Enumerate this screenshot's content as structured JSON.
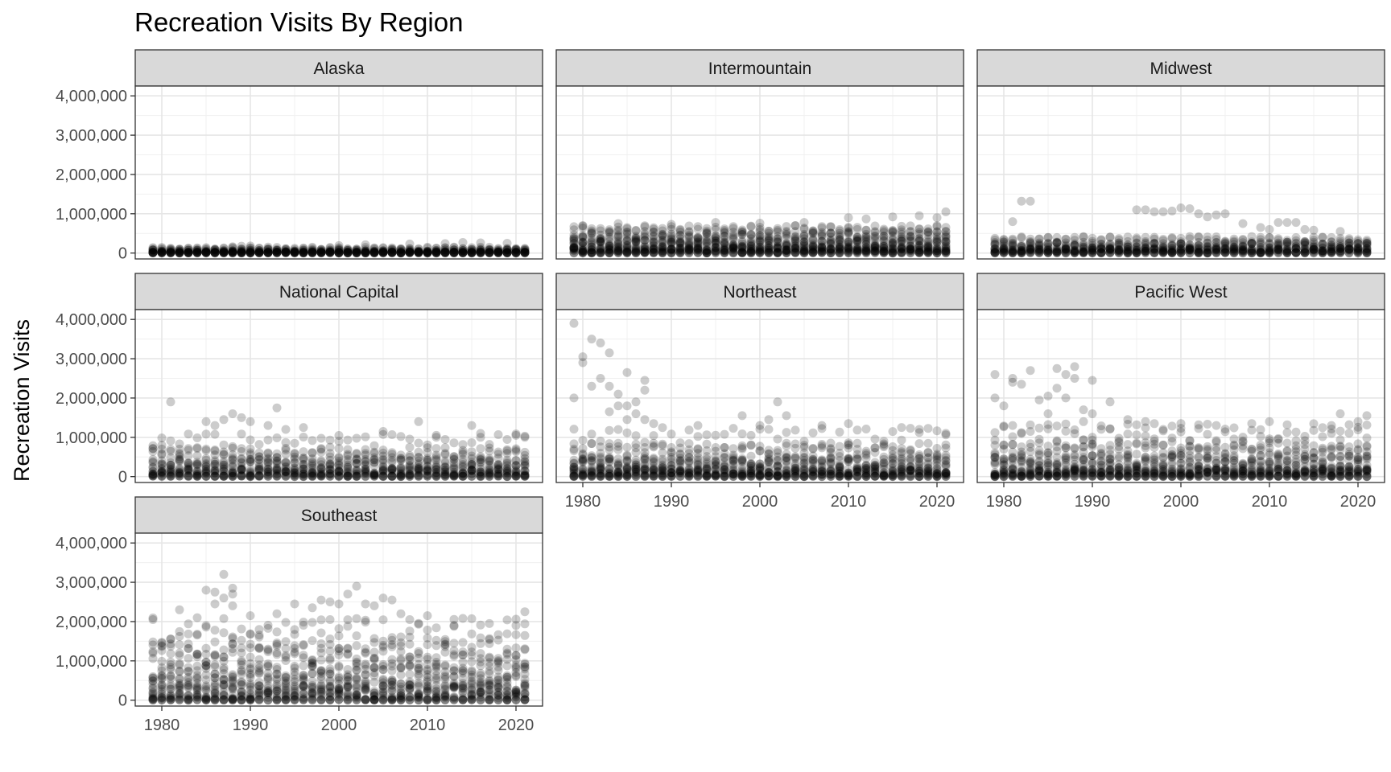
{
  "chart_data": {
    "type": "scatter",
    "title": "Recreation Visits By Region",
    "xlabel": "",
    "ylabel": "Recreation Visits",
    "xlim": [
      1977,
      2023
    ],
    "ylim": [
      -150000,
      4250000
    ],
    "x_ticks": [
      1980,
      1990,
      2000,
      2010,
      2020
    ],
    "x_tick_labels": [
      "1980",
      "1990",
      "2000",
      "2010",
      "2020"
    ],
    "y_ticks": [
      0,
      1000000,
      2000000,
      3000000,
      4000000
    ],
    "y_tick_labels": [
      "0",
      "1,000,000",
      "2,000,000",
      "3,000,000",
      "4,000,000"
    ],
    "grid": true,
    "legend": "none",
    "point_color": "#000000",
    "point_alpha": 0.2,
    "strip_color": "#d9d9d9",
    "years": [
      1979,
      2021
    ],
    "facets": [
      {
        "name": "Alaska",
        "bands": [
          [
            0,
            30000,
            7
          ],
          [
            30000,
            90000,
            4
          ],
          [
            90000,
            150000,
            2
          ]
        ],
        "outliers": [
          [
            1988,
            160000
          ],
          [
            1989,
            175000
          ],
          [
            1990,
            180000
          ],
          [
            1992,
            150000
          ],
          [
            2000,
            190000
          ],
          [
            2003,
            210000
          ],
          [
            2008,
            230000
          ],
          [
            2012,
            240000
          ],
          [
            2014,
            270000
          ],
          [
            2016,
            260000
          ],
          [
            2019,
            250000
          ]
        ]
      },
      {
        "name": "Intermountain",
        "bands": [
          [
            0,
            150000,
            9
          ],
          [
            150000,
            350000,
            6
          ],
          [
            350000,
            550000,
            4
          ],
          [
            550000,
            700000,
            2
          ]
        ],
        "outliers": [
          [
            1980,
            700000
          ],
          [
            1984,
            750000
          ],
          [
            1990,
            730000
          ],
          [
            1995,
            780000
          ],
          [
            2000,
            760000
          ],
          [
            2005,
            780000
          ],
          [
            2010,
            900000
          ],
          [
            2012,
            870000
          ],
          [
            2015,
            920000
          ],
          [
            2018,
            950000
          ],
          [
            2020,
            900000
          ],
          [
            2021,
            1050000
          ]
        ]
      },
      {
        "name": "Midwest",
        "bands": [
          [
            0,
            120000,
            8
          ],
          [
            120000,
            280000,
            5
          ],
          [
            280000,
            420000,
            2
          ]
        ],
        "outliers": [
          [
            1980,
            330000
          ],
          [
            1981,
            800000
          ],
          [
            1982,
            1320000
          ],
          [
            1983,
            1320000
          ],
          [
            1995,
            1100000
          ],
          [
            1996,
            1100000
          ],
          [
            1997,
            1050000
          ],
          [
            1998,
            1050000
          ],
          [
            1999,
            1070000
          ],
          [
            2000,
            1150000
          ],
          [
            2001,
            1130000
          ],
          [
            2002,
            1000000
          ],
          [
            2003,
            920000
          ],
          [
            2004,
            970000
          ],
          [
            2005,
            1000000
          ],
          [
            2007,
            750000
          ],
          [
            2009,
            650000
          ],
          [
            2010,
            600000
          ],
          [
            2011,
            780000
          ],
          [
            2012,
            780000
          ],
          [
            2013,
            780000
          ],
          [
            2014,
            600000
          ],
          [
            2015,
            580000
          ],
          [
            2018,
            550000
          ]
        ]
      },
      {
        "name": "National Capital",
        "bands": [
          [
            0,
            200000,
            8
          ],
          [
            200000,
            450000,
            5
          ],
          [
            450000,
            750000,
            3
          ],
          [
            750000,
            1100000,
            1
          ]
        ],
        "outliers": [
          [
            1980,
            800000
          ],
          [
            1981,
            1900000
          ],
          [
            1982,
            700000
          ],
          [
            1985,
            1400000
          ],
          [
            1986,
            1300000
          ],
          [
            1987,
            1450000
          ],
          [
            1988,
            1600000
          ],
          [
            1989,
            1500000
          ],
          [
            1990,
            1400000
          ],
          [
            1992,
            1300000
          ],
          [
            1993,
            1750000
          ],
          [
            1994,
            1200000
          ],
          [
            1996,
            1250000
          ],
          [
            2000,
            900000
          ],
          [
            2005,
            1150000
          ],
          [
            2009,
            1400000
          ],
          [
            2011,
            1050000
          ],
          [
            2015,
            1300000
          ],
          [
            2016,
            1000000
          ],
          [
            2020,
            1050000
          ],
          [
            2021,
            1000000
          ]
        ]
      },
      {
        "name": "Northeast",
        "bands": [
          [
            0,
            200000,
            9
          ],
          [
            200000,
            500000,
            6
          ],
          [
            500000,
            850000,
            3
          ],
          [
            850000,
            1250000,
            1
          ]
        ],
        "outliers": [
          [
            1979,
            3900000
          ],
          [
            1979,
            2000000
          ],
          [
            1980,
            3050000
          ],
          [
            1980,
            2900000
          ],
          [
            1981,
            3500000
          ],
          [
            1981,
            2300000
          ],
          [
            1982,
            3400000
          ],
          [
            1982,
            2500000
          ],
          [
            1983,
            3150000
          ],
          [
            1983,
            2300000
          ],
          [
            1983,
            1650000
          ],
          [
            1984,
            2100000
          ],
          [
            1984,
            1800000
          ],
          [
            1985,
            2650000
          ],
          [
            1985,
            1800000
          ],
          [
            1985,
            1450000
          ],
          [
            1986,
            1900000
          ],
          [
            1986,
            1600000
          ],
          [
            1987,
            2450000
          ],
          [
            1987,
            2200000
          ],
          [
            1987,
            1450000
          ],
          [
            1988,
            1350000
          ],
          [
            1993,
            1300000
          ],
          [
            1998,
            1550000
          ],
          [
            2000,
            1300000
          ],
          [
            2001,
            1450000
          ],
          [
            2002,
            1900000
          ],
          [
            2003,
            1550000
          ],
          [
            2007,
            1300000
          ],
          [
            2010,
            1350000
          ],
          [
            2016,
            1250000
          ],
          [
            2018,
            1200000
          ],
          [
            2021,
            1100000
          ]
        ]
      },
      {
        "name": "Pacific West",
        "bands": [
          [
            0,
            200000,
            9
          ],
          [
            200000,
            550000,
            6
          ],
          [
            550000,
            900000,
            3
          ],
          [
            900000,
            1350000,
            2
          ]
        ],
        "outliers": [
          [
            1979,
            2600000
          ],
          [
            1979,
            2000000
          ],
          [
            1980,
            1800000
          ],
          [
            1981,
            2500000
          ],
          [
            1981,
            2400000
          ],
          [
            1982,
            2350000
          ],
          [
            1983,
            2700000
          ],
          [
            1984,
            1950000
          ],
          [
            1985,
            2050000
          ],
          [
            1985,
            1600000
          ],
          [
            1986,
            2750000
          ],
          [
            1986,
            2250000
          ],
          [
            1987,
            2600000
          ],
          [
            1987,
            2000000
          ],
          [
            1988,
            2800000
          ],
          [
            1988,
            2500000
          ],
          [
            1989,
            1700000
          ],
          [
            1989,
            1400000
          ],
          [
            1990,
            2450000
          ],
          [
            1990,
            1600000
          ],
          [
            1992,
            1900000
          ],
          [
            1994,
            1450000
          ],
          [
            1996,
            1400000
          ],
          [
            2000,
            1350000
          ],
          [
            2010,
            1400000
          ],
          [
            2017,
            1300000
          ],
          [
            2018,
            1600000
          ],
          [
            2020,
            1400000
          ],
          [
            2021,
            1550000
          ]
        ]
      },
      {
        "name": "Southeast",
        "bands": [
          [
            0,
            400000,
            10
          ],
          [
            400000,
            900000,
            6
          ],
          [
            900000,
            1450000,
            4
          ],
          [
            1450000,
            2100000,
            2
          ]
        ],
        "outliers": [
          [
            1979,
            2050000
          ],
          [
            1982,
            2300000
          ],
          [
            1984,
            2100000
          ],
          [
            1985,
            2800000
          ],
          [
            1986,
            2750000
          ],
          [
            1986,
            2450000
          ],
          [
            1987,
            3200000
          ],
          [
            1987,
            2600000
          ],
          [
            1988,
            2850000
          ],
          [
            1988,
            2700000
          ],
          [
            1988,
            2400000
          ],
          [
            1990,
            2150000
          ],
          [
            1991,
            1800000
          ],
          [
            1993,
            2200000
          ],
          [
            1995,
            2450000
          ],
          [
            1997,
            2350000
          ],
          [
            1998,
            2550000
          ],
          [
            1999,
            2500000
          ],
          [
            2000,
            2450000
          ],
          [
            2001,
            2700000
          ],
          [
            2002,
            2900000
          ],
          [
            2003,
            2450000
          ],
          [
            2004,
            2400000
          ],
          [
            2005,
            2600000
          ],
          [
            2006,
            2550000
          ],
          [
            2007,
            2200000
          ],
          [
            2008,
            2050000
          ],
          [
            2010,
            2150000
          ],
          [
            2013,
            1900000
          ],
          [
            2017,
            1950000
          ],
          [
            2020,
            1900000
          ],
          [
            2021,
            2250000
          ]
        ]
      }
    ]
  }
}
